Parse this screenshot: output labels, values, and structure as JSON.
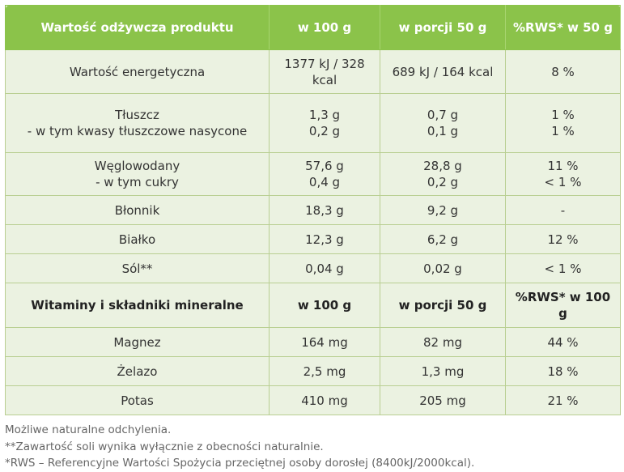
{
  "header": {
    "col1": "Wartość odżywcza produktu",
    "col2": "w 100 g",
    "col3": "w porcji 50 g",
    "col4": "%RWS* w 50 g"
  },
  "rows": {
    "energy": {
      "name": "Wartość energetyczna",
      "per100": "1377 kJ / 328 kcal",
      "portion": "689 kJ / 164 kcal",
      "rws": "8 %"
    },
    "fat": {
      "name": "Tłuszcz",
      "sub_name": "- w tym kwasy tłuszczowe nasycone",
      "per100": "1,3 g",
      "sub_per100": "0,2 g",
      "portion": "0,7 g",
      "sub_portion": "0,1 g",
      "rws": "1 %",
      "sub_rws": "1 %"
    },
    "carb": {
      "name": "Węglowodany",
      "sub_name": "- w tym cukry",
      "per100": "57,6 g",
      "sub_per100": "0,4 g",
      "portion": "28,8 g",
      "sub_portion": "0,2 g",
      "rws": "11 %",
      "sub_rws": "< 1 %"
    },
    "fiber": {
      "name": "Błonnik",
      "per100": "18,3 g",
      "portion": "9,2 g",
      "rws": "-"
    },
    "protein": {
      "name": "Białko",
      "per100": "12,3 g",
      "portion": "6,2 g",
      "rws": "12 %"
    },
    "salt": {
      "name": "Sól**",
      "per100": "0,04 g",
      "portion": "0,02 g",
      "rws": "< 1 %"
    }
  },
  "minerals_header": {
    "col1": "Witaminy i składniki mineralne",
    "col2": "w 100 g",
    "col3": "w porcji 50 g",
    "col4": "%RWS* w 100 g"
  },
  "minerals": {
    "magnesium": {
      "name": "Magnez",
      "per100": "164 mg",
      "portion": "82 mg",
      "rws": "44 %"
    },
    "iron": {
      "name": "Żelazo",
      "per100": "2,5 mg",
      "portion": "1,3 mg",
      "rws": "18 %"
    },
    "potassium": {
      "name": "Potas",
      "per100": "410 mg",
      "portion": "205 mg",
      "rws": "21 %"
    }
  },
  "footnotes": {
    "line1": "Możliwe naturalne odchylenia.",
    "line2": "**Zawartość soli wynika wyłącznie z obecności naturalnie.",
    "line3": "*RWS – Referencyjne Wartości Spożycia przeciętnej osoby dorosłej (8400kJ/2000kcal)."
  },
  "colors": {
    "header_bg": "#8bc34a",
    "row_bg": "#ebf2e1",
    "border": "#b9cf92"
  }
}
